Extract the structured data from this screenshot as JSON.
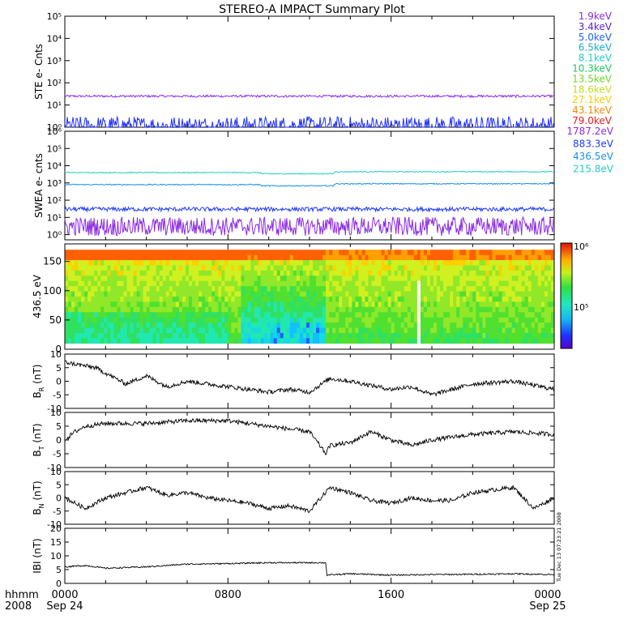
{
  "title": "STEREO-A IMPACT Summary Plot",
  "footer": {
    "hhmm_label": "hhmm",
    "year_label": "2008",
    "timestamp": "Tue Dec 13 07:23:21 2008"
  },
  "x_ticks": [
    {
      "time": "0000",
      "date": "Sep 24"
    },
    {
      "time": "0800",
      "date": ""
    },
    {
      "time": "1600",
      "date": ""
    },
    {
      "time": "0000",
      "date": "Sep 25"
    }
  ],
  "ste_legend": [
    {
      "label": "1.9keV",
      "color": "#8b2be2"
    },
    {
      "label": "3.4keV",
      "color": "#5d1fd6"
    },
    {
      "label": "5.0keV",
      "color": "#2060ff"
    },
    {
      "label": "6.5keV",
      "color": "#18a8d8"
    },
    {
      "label": "8.1keV",
      "color": "#20d0c0"
    },
    {
      "label": "10.3keV",
      "color": "#20c860"
    },
    {
      "label": "13.5keV",
      "color": "#70d820"
    },
    {
      "label": "18.6keV",
      "color": "#c0e020"
    },
    {
      "label": "27.1keV",
      "color": "#f0d000"
    },
    {
      "label": "43.1keV",
      "color": "#f08a00"
    },
    {
      "label": "79.0keV",
      "color": "#e02020"
    }
  ],
  "swea_legend": [
    {
      "label": "1787.2eV",
      "color": "#8b2be2"
    },
    {
      "label": "883.3eV",
      "color": "#1e3cff"
    },
    {
      "label": "436.5eV",
      "color": "#1890e8"
    },
    {
      "label": "215.8eV",
      "color": "#20d0c8"
    }
  ],
  "colorbar": {
    "top_label": "10⁶",
    "mid_label": "10⁵"
  },
  "chart_data": [
    {
      "type": "line",
      "ylabel": "STE e- Cnts",
      "y_scale": "log",
      "ylim": [
        1,
        100000
      ],
      "y_tick_labels": [
        "10⁰",
        "10¹",
        "10²",
        "10³",
        "10⁴",
        "10⁵"
      ],
      "series": [
        {
          "name": "1.9keV",
          "color": "#8b2be2",
          "mean": 25,
          "noise": 0.05
        },
        {
          "name": "5.0keV",
          "color": "#2030ff",
          "mean": 1.1,
          "noise": 0.45
        }
      ]
    },
    {
      "type": "line",
      "ylabel": "SWEA e- cnts",
      "y_scale": "log",
      "ylim": [
        0.5,
        1000000
      ],
      "y_tick_labels": [
        "10⁰",
        "10¹",
        "10²",
        "10³",
        "10⁴",
        "10⁵",
        "10⁶"
      ],
      "series": [
        {
          "name": "215.8eV",
          "color": "#20d0c8",
          "mean": 4000,
          "noise": 0.03
        },
        {
          "name": "436.5eV",
          "color": "#1890e8",
          "mean": 800,
          "noise": 0.03
        },
        {
          "name": "883.3eV",
          "color": "#1e3cff",
          "mean": 30,
          "noise": 0.12
        },
        {
          "name": "1787.2eV",
          "color": "#8b2be2",
          "mean": 3,
          "noise": 0.55
        }
      ]
    },
    {
      "type": "heatmap",
      "ylabel": "436.5 eV",
      "ylim": [
        0,
        180
      ],
      "y_ticks": [
        0,
        50,
        100,
        150
      ],
      "x_hours": [
        0,
        24
      ],
      "pitch_top": 170,
      "pitch_bottom": 10,
      "colorbar_range": [
        100000,
        1000000
      ],
      "colorbar_scale": "log"
    },
    {
      "type": "line",
      "ylabel": "B_R (nT)",
      "ylabel_main": "B",
      "ylabel_sub": "R",
      "ylabel_unit": "(nT)",
      "ylim": [
        -10,
        10
      ],
      "y_ticks": [
        -10,
        -5,
        0,
        5,
        10
      ],
      "x_hours": [
        0,
        1.5,
        3,
        4,
        5,
        6,
        8,
        10,
        11,
        12,
        13,
        14,
        16,
        17,
        18,
        19,
        20,
        22,
        24
      ],
      "values": [
        7,
        5,
        -1,
        2,
        -2,
        0,
        -2,
        -4,
        -3,
        -4,
        1,
        0,
        -3,
        -2,
        -5,
        -3,
        -1,
        0,
        -3
      ]
    },
    {
      "type": "line",
      "ylabel": "B_T (nT)",
      "ylabel_main": "B",
      "ylabel_sub": "T",
      "ylabel_unit": "(nT)",
      "ylim": [
        -10,
        10
      ],
      "y_ticks": [
        -10,
        -5,
        0,
        5,
        10
      ],
      "x_hours": [
        0,
        0.5,
        1,
        2,
        4,
        6,
        8,
        10,
        12,
        12.8,
        13,
        14,
        15,
        16,
        17,
        18,
        20,
        22,
        24
      ],
      "values": [
        0,
        3,
        5,
        6,
        6,
        7,
        7,
        5,
        3,
        -5,
        -2,
        -1,
        3,
        0,
        -2,
        0,
        2,
        3,
        2
      ]
    },
    {
      "type": "line",
      "ylabel": "B_N (nT)",
      "ylabel_main": "B",
      "ylabel_sub": "N",
      "ylabel_unit": "(nT)",
      "ylim": [
        -10,
        10
      ],
      "y_ticks": [
        -10,
        -5,
        0,
        5,
        10
      ],
      "x_hours": [
        0,
        1,
        2,
        3,
        4,
        5,
        6,
        7,
        8,
        9,
        10,
        11,
        12,
        13,
        14,
        15,
        16,
        17,
        18,
        19,
        20,
        21,
        22,
        23,
        24
      ],
      "values": [
        0,
        -4,
        0,
        2,
        4,
        1,
        2,
        0,
        -1,
        -2,
        -4,
        -3,
        -5,
        4,
        2,
        -1,
        -2,
        0,
        -1,
        -1,
        2,
        3,
        4,
        -4,
        0
      ]
    },
    {
      "type": "line",
      "ylabel": "|B| (nT)",
      "ylabel_main": "IBI",
      "ylabel_sub": "",
      "ylabel_unit": "(nT)",
      "ylim": [
        0,
        20
      ],
      "y_ticks": [
        0,
        5,
        10,
        15,
        20
      ],
      "x_hours": [
        0,
        1,
        2,
        4,
        6,
        8,
        10,
        12.8,
        12.85,
        14,
        16,
        18,
        20,
        22,
        24
      ],
      "values": [
        6,
        6.5,
        5.5,
        6,
        7,
        7.2,
        7.5,
        7.5,
        3,
        3.5,
        3,
        3.2,
        3.3,
        3.5,
        3.2
      ]
    }
  ]
}
